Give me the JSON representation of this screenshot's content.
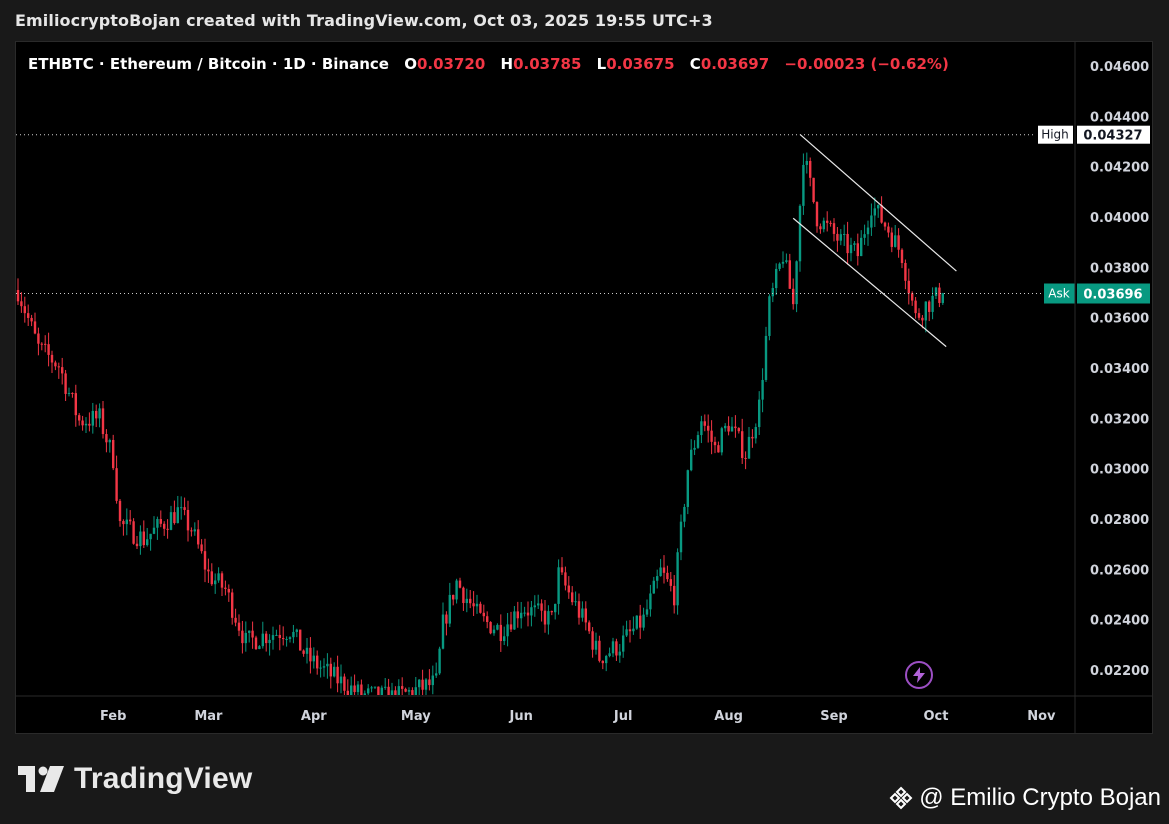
{
  "caption": "EmiliocryptoBojan created with TradingView.com, Oct 03, 2025 19:55 UTC+3",
  "legend": {
    "symbol": "ETHBTC · Ethereum / Bitcoin · 1D · Binance",
    "o_label": "O",
    "o_value": "0.03720",
    "h_label": "H",
    "h_value": "0.03785",
    "l_label": "L",
    "l_value": "0.03675",
    "c_label": "C",
    "c_value": "0.03697",
    "change": "−0.00023 (−0.62%)"
  },
  "colors": {
    "background": "#000000",
    "up": "#089981",
    "down": "#f23645",
    "ask_badge": "#089981",
    "channel_line": "#e8e8e8",
    "axis_text": "#d1d4dc"
  },
  "footer": {
    "brand": "TradingView",
    "author": "@ Emilio Crypto Bojan"
  },
  "chart_data": {
    "type": "candlestick",
    "title": "ETHBTC · Ethereum / Bitcoin · 1D · Binance",
    "x_axis": {
      "labels": [
        "Feb",
        "Mar",
        "Apr",
        "May",
        "Jun",
        "Jul",
        "Aug",
        "Sep",
        "Oct",
        "Nov"
      ],
      "start_date": "2025-01-04"
    },
    "y_axis": {
      "ticks": [
        "0.04600",
        "0.04400",
        "0.04200",
        "0.04000",
        "0.03800",
        "0.03600",
        "0.03400",
        "0.03200",
        "0.03000",
        "0.02800",
        "0.02600",
        "0.02400",
        "0.02200"
      ],
      "range": [
        0.0211,
        0.0471
      ],
      "position": "right"
    },
    "markers": {
      "high": {
        "label": "High",
        "value": "0.04327",
        "line": "dotted"
      },
      "ask": {
        "label": "Ask",
        "value": "0.03696",
        "line": "dotted"
      }
    },
    "channel": {
      "upper": [
        [
          "2025-08-22",
          0.04328
        ],
        [
          "2025-10-07",
          0.03785
        ]
      ],
      "lower": [
        [
          "2025-08-20",
          0.03995
        ],
        [
          "2025-10-04",
          0.03485
        ]
      ]
    },
    "trend_anchors": [
      [
        "2025-01-04",
        0.0371
      ],
      [
        "2025-01-10",
        0.0348
      ],
      [
        "2025-01-16",
        0.0341
      ],
      [
        "2025-01-22",
        0.0319
      ],
      [
        "2025-01-28",
        0.032
      ],
      [
        "2025-02-01",
        0.0304
      ],
      [
        "2025-02-03",
        0.0278
      ],
      [
        "2025-02-10",
        0.0272
      ],
      [
        "2025-02-20",
        0.0283
      ],
      [
        "2025-02-24",
        0.0276
      ],
      [
        "2025-03-01",
        0.0258
      ],
      [
        "2025-03-06",
        0.0252
      ],
      [
        "2025-03-12",
        0.0231
      ],
      [
        "2025-03-18",
        0.0234
      ],
      [
        "2025-03-25",
        0.0236
      ],
      [
        "2025-03-30",
        0.0225
      ],
      [
        "2025-04-07",
        0.0217
      ],
      [
        "2025-04-15",
        0.021
      ],
      [
        "2025-04-25",
        0.0209
      ],
      [
        "2025-05-07",
        0.0215
      ],
      [
        "2025-05-09",
        0.0238
      ],
      [
        "2025-05-13",
        0.0255
      ],
      [
        "2025-05-20",
        0.024
      ],
      [
        "2025-05-26",
        0.0236
      ],
      [
        "2025-06-01",
        0.0245
      ],
      [
        "2025-06-10",
        0.024
      ],
      [
        "2025-06-12",
        0.0258
      ],
      [
        "2025-06-20",
        0.0238
      ],
      [
        "2025-06-24",
        0.0225
      ],
      [
        "2025-06-30",
        0.023
      ],
      [
        "2025-07-07",
        0.024
      ],
      [
        "2025-07-12",
        0.0259
      ],
      [
        "2025-07-16",
        0.025
      ],
      [
        "2025-07-20",
        0.03
      ],
      [
        "2025-07-24",
        0.032
      ],
      [
        "2025-07-28",
        0.0308
      ],
      [
        "2025-08-01",
        0.0318
      ],
      [
        "2025-08-06",
        0.0306
      ],
      [
        "2025-08-10",
        0.0325
      ],
      [
        "2025-08-13",
        0.0365
      ],
      [
        "2025-08-17",
        0.0385
      ],
      [
        "2025-08-20",
        0.0365
      ],
      [
        "2025-08-23",
        0.0425
      ],
      [
        "2025-08-27",
        0.04
      ],
      [
        "2025-09-03",
        0.039
      ],
      [
        "2025-09-08",
        0.0385
      ],
      [
        "2025-09-12",
        0.0405
      ],
      [
        "2025-09-17",
        0.0395
      ],
      [
        "2025-09-21",
        0.0385
      ],
      [
        "2025-09-25",
        0.036
      ],
      [
        "2025-09-28",
        0.0365
      ],
      [
        "2025-10-01",
        0.0368
      ],
      [
        "2025-10-03",
        0.03697
      ]
    ]
  }
}
